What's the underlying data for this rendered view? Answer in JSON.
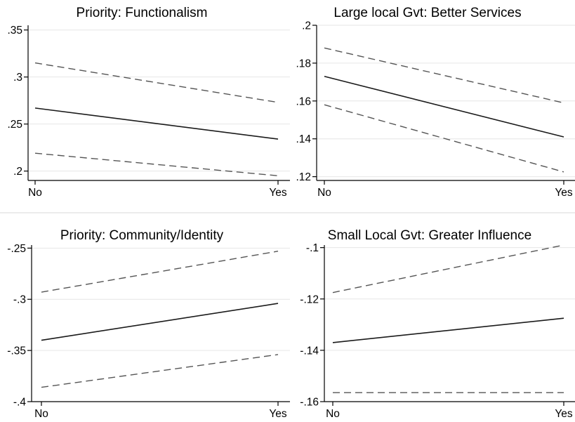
{
  "colors": {
    "line": "#1a1a1a",
    "ci": "#555555",
    "grid": "#e6e6e6",
    "axis": "#000000",
    "divider": "#e6e6e6"
  },
  "chart_data": [
    {
      "type": "line",
      "title": "Priority: Functionalism",
      "xlabel": "",
      "ylabel": "",
      "categories": [
        "No",
        "Yes"
      ],
      "yticks": [
        0.2,
        0.25,
        0.3,
        0.35
      ],
      "ytick_labels": [
        ".2",
        ".25",
        ".3",
        ".35"
      ],
      "ylim": [
        0.19,
        0.355
      ],
      "grid": true,
      "series": [
        {
          "role": "estimate",
          "style": "solid",
          "values": [
            0.267,
            0.234
          ]
        },
        {
          "role": "upper-ci",
          "style": "dashed",
          "values": [
            0.315,
            0.273
          ]
        },
        {
          "role": "lower-ci",
          "style": "dashed",
          "values": [
            0.219,
            0.195
          ]
        }
      ]
    },
    {
      "type": "line",
      "title": "Large local Gvt: Better Services",
      "xlabel": "",
      "ylabel": "",
      "categories": [
        "No",
        "Yes"
      ],
      "yticks": [
        0.12,
        0.14,
        0.16,
        0.18,
        0.2
      ],
      "ytick_labels": [
        ".12",
        ".14",
        ".16",
        ".18",
        ".2"
      ],
      "ylim": [
        0.118,
        0.2
      ],
      "grid": true,
      "series": [
        {
          "role": "estimate",
          "style": "solid",
          "values": [
            0.173,
            0.141
          ]
        },
        {
          "role": "upper-ci",
          "style": "dashed",
          "values": [
            0.188,
            0.159
          ]
        },
        {
          "role": "lower-ci",
          "style": "dashed",
          "values": [
            0.158,
            0.1225
          ]
        }
      ]
    },
    {
      "type": "line",
      "title": "Priority: Community/Identity",
      "xlabel": "",
      "ylabel": "",
      "categories": [
        "No",
        "Yes"
      ],
      "yticks": [
        -0.4,
        -0.35,
        -0.3,
        -0.25
      ],
      "ytick_labels": [
        "-.4",
        "-.35",
        "-.3",
        "-.25"
      ],
      "ylim": [
        -0.4,
        -0.247
      ],
      "grid": true,
      "series": [
        {
          "role": "estimate",
          "style": "solid",
          "values": [
            -0.34,
            -0.304
          ]
        },
        {
          "role": "upper-ci",
          "style": "dashed",
          "values": [
            -0.293,
            -0.253
          ]
        },
        {
          "role": "lower-ci",
          "style": "dashed",
          "values": [
            -0.386,
            -0.354
          ]
        }
      ]
    },
    {
      "type": "line",
      "title": "Small Local Gvt: Greater Influence",
      "xlabel": "",
      "ylabel": "",
      "categories": [
        "No",
        "Yes"
      ],
      "yticks": [
        -0.16,
        -0.14,
        -0.12,
        -0.1
      ],
      "ytick_labels": [
        "-.16",
        "-.14",
        "-.12",
        "-.1"
      ],
      "ylim": [
        -0.16,
        -0.099
      ],
      "grid": true,
      "series": [
        {
          "role": "estimate",
          "style": "solid",
          "values": [
            -0.137,
            -0.1275
          ]
        },
        {
          "role": "upper-ci",
          "style": "dashed",
          "values": [
            -0.1175,
            -0.099
          ]
        },
        {
          "role": "lower-ci",
          "style": "dashed",
          "values": [
            -0.1565,
            -0.1565
          ]
        }
      ]
    }
  ]
}
